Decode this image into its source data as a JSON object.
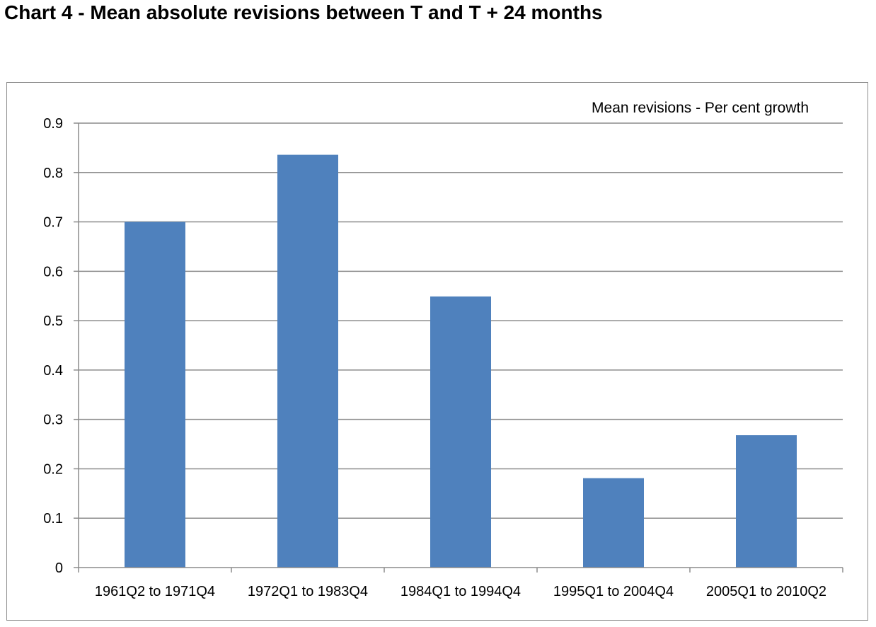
{
  "title": "Chart 4 - Mean absolute revisions between T and T + 24 months",
  "annotation": "Mean revisions - Per cent growth",
  "chart_data": {
    "type": "bar",
    "title": "Chart 4 - Mean absolute revisions between T and T + 24 months",
    "annotation": "Mean revisions - Per cent growth",
    "categories": [
      "1961Q2 to 1971Q4",
      "1972Q1 to 1983Q4",
      "1984Q1 to 1994Q4",
      "1995Q1 to 2004Q4",
      "2005Q1 to 2010Q2"
    ],
    "series": [
      {
        "values": [
          0.7,
          0.836,
          0.549,
          0.181,
          0.268
        ],
        "color": "#4f81bd"
      }
    ],
    "xlabel": "",
    "ylabel": "",
    "ylim": [
      0,
      0.9
    ],
    "yticks": [
      "0",
      "0.1",
      "0.2",
      "0.3",
      "0.4",
      "0.5",
      "0.6",
      "0.7",
      "0.8",
      "0.9"
    ],
    "grid": true,
    "legend": "none"
  }
}
